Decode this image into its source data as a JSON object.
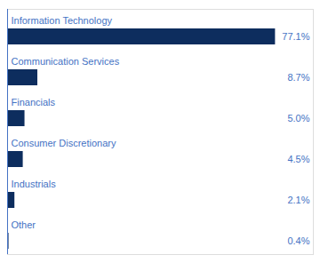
{
  "chart_data": {
    "type": "bar",
    "orientation": "horizontal",
    "categories": [
      "Information Technology",
      "Communication Services",
      "Financials",
      "Consumer Discretionary",
      "Industrials",
      "Other"
    ],
    "values": [
      77.1,
      8.7,
      5.0,
      4.5,
      2.1,
      0.4
    ],
    "value_labels": [
      "77.1%",
      "8.7%",
      "5.0%",
      "4.5%",
      "2.1%",
      "0.4%"
    ],
    "data_labels": true,
    "color": "#0d2d5e",
    "xlim": [
      0,
      88
    ],
    "tick_labels": false
  }
}
